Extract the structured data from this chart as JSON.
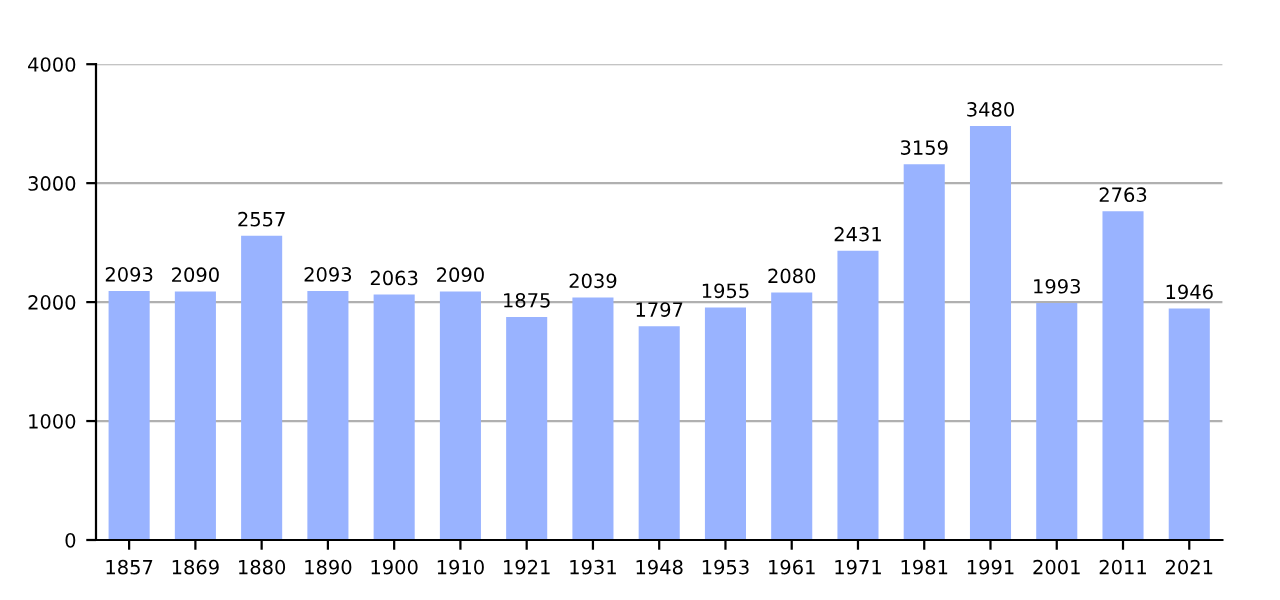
{
  "chart_data": {
    "type": "bar",
    "categories": [
      "1857",
      "1869",
      "1880",
      "1890",
      "1900",
      "1910",
      "1921",
      "1931",
      "1948",
      "1953",
      "1961",
      "1971",
      "1981",
      "1991",
      "2001",
      "2011",
      "2021"
    ],
    "values": [
      2093,
      2090,
      2557,
      2093,
      2063,
      2090,
      1875,
      2039,
      1797,
      1955,
      2080,
      2431,
      3159,
      3480,
      1993,
      2763,
      1946
    ],
    "color": "#99b3ff",
    "ylim": [
      0,
      4000
    ],
    "yticks": [
      0,
      1000,
      2000,
      3000,
      4000
    ],
    "grid": "y",
    "data_labels": true
  }
}
